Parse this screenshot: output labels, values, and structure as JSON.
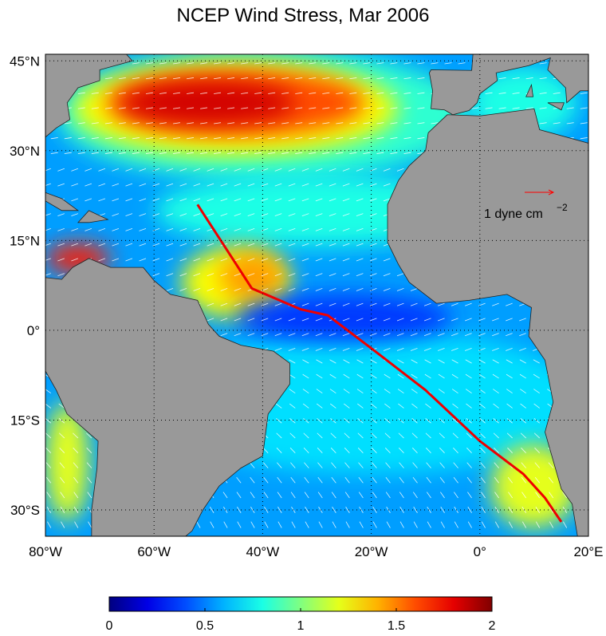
{
  "map": {
    "title": "NCEP Wind Stress, Mar 2006",
    "xlim": [
      -80,
      20
    ],
    "ylim": [
      -34.4,
      46.1
    ],
    "xticks": [
      {
        "value": -80,
        "label": "80°W"
      },
      {
        "value": -60,
        "label": "60°W"
      },
      {
        "value": -40,
        "label": "40°W"
      },
      {
        "value": -20,
        "label": "20°W"
      },
      {
        "value": 0,
        "label": "0°"
      },
      {
        "value": 20,
        "label": "20°E"
      }
    ],
    "yticks": [
      {
        "value": 45,
        "label": "45°N"
      },
      {
        "value": 30,
        "label": "30°N"
      },
      {
        "value": 15,
        "label": "15°N"
      },
      {
        "value": 0,
        "label": "0°"
      },
      {
        "value": -15,
        "label": "15°S"
      },
      {
        "value": -30,
        "label": "30°S"
      }
    ],
    "grid": true,
    "colorbar": {
      "lim": [
        0,
        2
      ],
      "ticks": [
        0,
        0.5,
        1,
        1.5,
        2
      ],
      "colormap": "jet"
    },
    "reference_arrow": {
      "label": "1 dyne cm",
      "exponent": "−2",
      "color": "#ff0000"
    }
  }
}
